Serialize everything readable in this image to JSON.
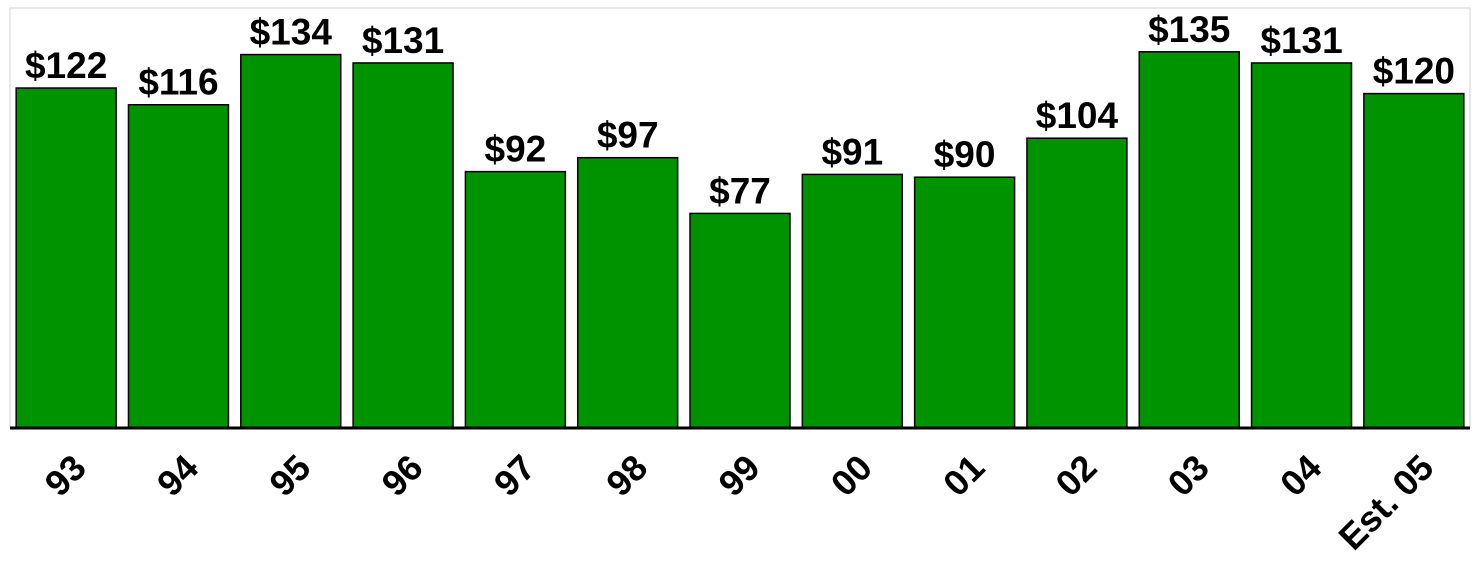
{
  "chart_data": {
    "type": "bar",
    "categories": [
      "93",
      "94",
      "95",
      "96",
      "97",
      "98",
      "99",
      "00",
      "01",
      "02",
      "03",
      "04",
      "Est. 05"
    ],
    "values": [
      122,
      116,
      134,
      131,
      92,
      97,
      77,
      91,
      90,
      104,
      135,
      131,
      120
    ],
    "value_labels": [
      "$122",
      "$116",
      "$134",
      "$131",
      "$92",
      "$97",
      "$77",
      "$91",
      "$90",
      "$104",
      "$135",
      "$131",
      "$120"
    ],
    "color": "#009300",
    "ylim": [
      0,
      150
    ]
  }
}
